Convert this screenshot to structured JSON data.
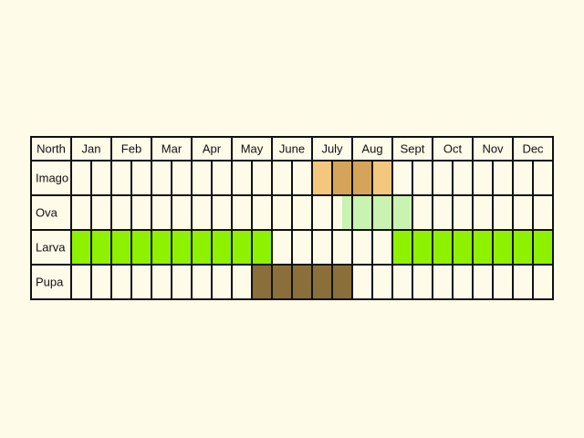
{
  "header": {
    "region": "North",
    "region_color": "#e2231a"
  },
  "months": [
    "Jan",
    "Feb",
    "Mar",
    "Apr",
    "May",
    "June",
    "July",
    "Aug",
    "Sept",
    "Oct",
    "Nov",
    "Dec"
  ],
  "stages": [
    {
      "label": "Imago",
      "bars": [
        {
          "start_month": 7.0,
          "end_month": 8.0,
          "color": "#f4c77e"
        },
        {
          "start_month": 7.5,
          "end_month": 8.0,
          "color": "#d5a35a"
        },
        {
          "start_month": 8.0,
          "end_month": 8.5,
          "color": "#d5a35a"
        },
        {
          "start_month": 8.5,
          "end_month": 9.0,
          "color": "#f4c77e"
        }
      ]
    },
    {
      "label": "Ova",
      "bars": [
        {
          "start_month": 7.75,
          "end_month": 9.5,
          "color": "#c9f3b0"
        }
      ]
    },
    {
      "label": "Larva",
      "bars": [
        {
          "start_month": 1.0,
          "end_month": 6.0,
          "color": "#8ef100"
        },
        {
          "start_month": 9.0,
          "end_month": 13.0,
          "color": "#8ef100"
        }
      ]
    },
    {
      "label": "Pupa",
      "bars": [
        {
          "start_month": 5.5,
          "end_month": 8.0,
          "color": "#8a6f3a"
        }
      ]
    }
  ],
  "colors": {
    "grid": "#111111",
    "cell": "#fefbe9"
  }
}
